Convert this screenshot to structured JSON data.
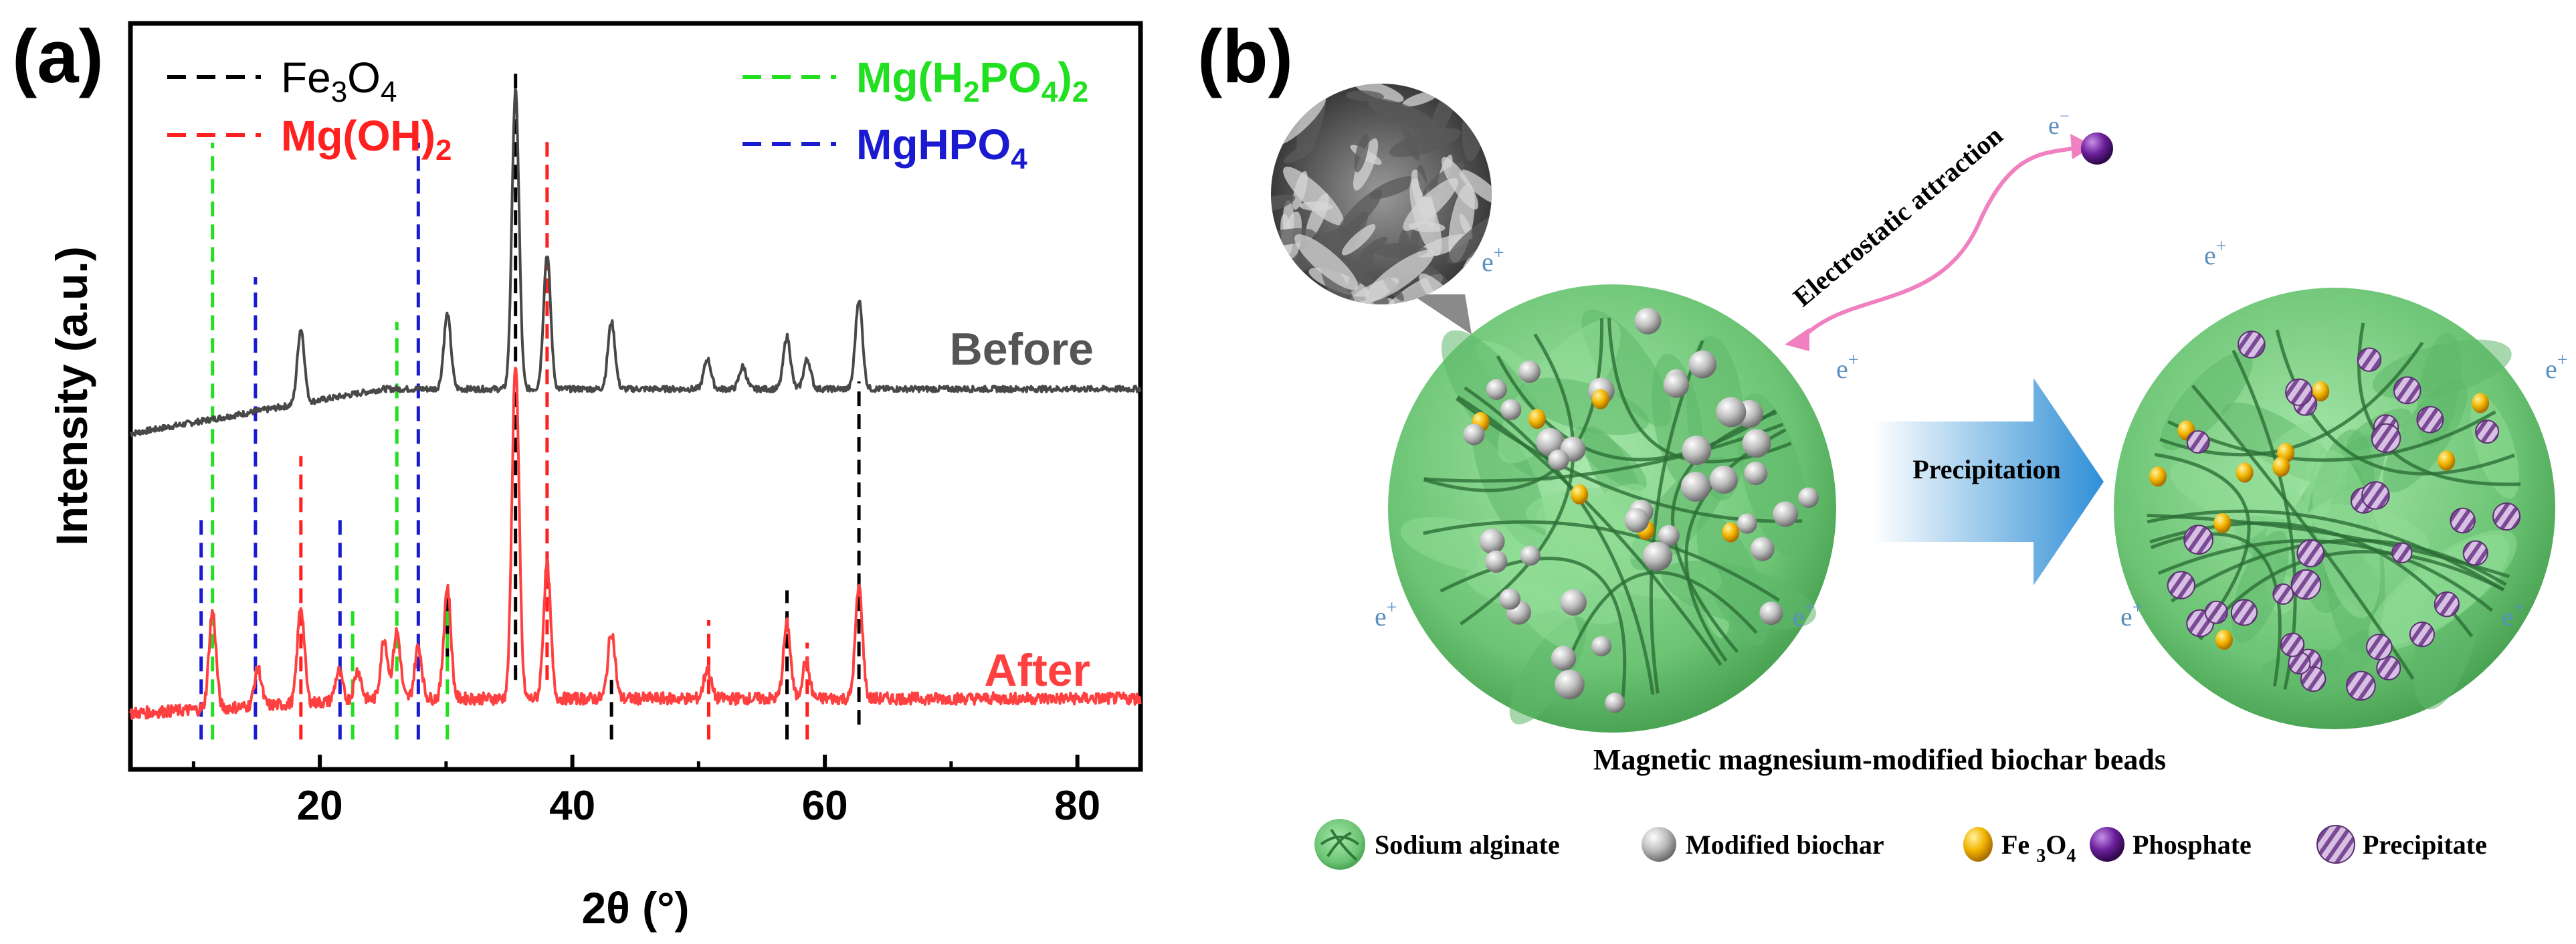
{
  "panel_a": {
    "label": "(a)",
    "legend": [
      {
        "base": "Fe",
        "sub1": "3",
        "mid": "O",
        "sub2": "4",
        "tail": "",
        "color": "#000000"
      },
      {
        "base": "Mg(OH)",
        "sub1": "2",
        "mid": "",
        "sub2": "",
        "tail": "",
        "color": "#ff2020"
      },
      {
        "base": "Mg(H",
        "sub1": "2",
        "mid": "PO",
        "sub2": "4",
        "tail": ")2",
        "color": "#20e020"
      },
      {
        "base": "MgHPO",
        "sub1": "4",
        "mid": "",
        "sub2": "",
        "tail": "",
        "color": "#1a1ad0"
      }
    ],
    "chart_data": {
      "type": "line",
      "xlabel": "2θ (°)",
      "ylabel": "Intensity (a.u.)",
      "xlim": [
        5,
        85
      ],
      "x_ticks": [
        20,
        40,
        60,
        80
      ],
      "y_ticks": [],
      "series": [
        {
          "name": "Before",
          "color": "#484848",
          "baseline": 0.45,
          "rise": 0.06,
          "peaks": [
            [
              18.5,
              0.1
            ],
            [
              30.1,
              0.1
            ],
            [
              35.5,
              0.4
            ],
            [
              38.0,
              0.18
            ],
            [
              43.1,
              0.09
            ],
            [
              50.7,
              0.04
            ],
            [
              53.5,
              0.03
            ],
            [
              57.0,
              0.07
            ],
            [
              58.6,
              0.04
            ],
            [
              62.7,
              0.12
            ]
          ]
        },
        {
          "name": "After",
          "color": "#ff4040",
          "baseline": 0.075,
          "rise": 0.02,
          "peaks": [
            [
              11.5,
              0.13
            ],
            [
              15.1,
              0.05
            ],
            [
              18.5,
              0.13
            ],
            [
              21.5,
              0.04
            ],
            [
              23.0,
              0.04
            ],
            [
              25.1,
              0.08
            ],
            [
              26.1,
              0.09
            ],
            [
              27.8,
              0.07
            ],
            [
              30.1,
              0.15
            ],
            [
              35.5,
              0.45
            ],
            [
              38.0,
              0.18
            ],
            [
              43.1,
              0.09
            ],
            [
              50.7,
              0.04
            ],
            [
              57.0,
              0.1
            ],
            [
              58.5,
              0.05
            ],
            [
              62.7,
              0.15
            ]
          ]
        }
      ],
      "reference_lines": {
        "Fe3O4": {
          "color": "#000000",
          "positions": [
            30.1,
            35.5,
            43.1,
            57.0,
            62.7
          ]
        },
        "Mg(OH)2": {
          "color": "#ff2020",
          "positions": [
            18.5,
            38.0,
            50.8,
            58.6
          ]
        },
        "Mg(H2PO4)2": {
          "color": "#20e020",
          "positions": [
            11.5,
            22.6,
            26.1,
            30.1
          ]
        },
        "MgHPO4": {
          "color": "#1a1ad0",
          "positions": [
            10.6,
            14.9,
            21.6,
            27.8
          ]
        }
      },
      "grid": false
    }
  },
  "panel_b": {
    "label": "(b)",
    "electrostatic_label": "Electrostatic attraction",
    "precipitation_label": "Precipitation",
    "charge_positive": "e+",
    "charge_negative": "e-",
    "caption": "Magnetic magnesium-modified biochar beads",
    "legend": [
      {
        "label": "Sodium alginate",
        "icon": "alginate-icon"
      },
      {
        "label": "Modified biochar",
        "icon": "biochar-icon"
      },
      {
        "label": "Fe3O4",
        "icon": "fe3o4-icon"
      },
      {
        "label": "Phosphate",
        "icon": "phosphate-icon"
      },
      {
        "label": "Precipitate",
        "icon": "precipitate-icon"
      }
    ],
    "colors": {
      "bead": "#7ecf84",
      "bead_dark": "#3d8a47",
      "biochar": "#b8b8b8",
      "fe3o4": "#f0b000",
      "phosphate": "#6a1f9a",
      "precipitate": "#a070b0",
      "arrow": "#3a9bd8",
      "attraction": "#f080c0",
      "charge": "#5a8fc0"
    }
  }
}
